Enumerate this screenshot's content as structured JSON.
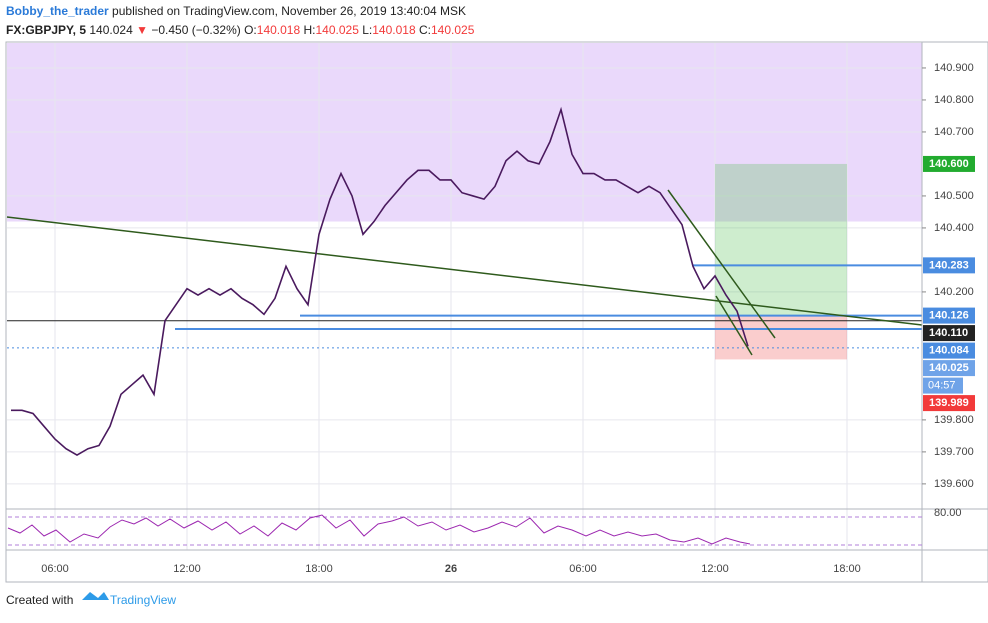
{
  "header": {
    "author": "Bobby_the_trader",
    "published": "published on TradingView.com, November 26, 2019 13:40:04 MSK",
    "symbol": "FX:GBPJPY, 5",
    "last": "140.024",
    "arrow": "▼",
    "change": "−0.450 (−0.32%)",
    "o_label": "O:",
    "open": "140.018",
    "h_label": "H:",
    "high": "140.025",
    "l_label": "L:",
    "low": "140.018",
    "c_label": "C:",
    "close": "140.025"
  },
  "chart_data": {
    "type": "line",
    "color": "#4a1a5e",
    "categories": [
      null,
      null,
      null,
      null,
      "06:00",
      null,
      null,
      null,
      null,
      null,
      null,
      null,
      null,
      null,
      null,
      null,
      "12:00",
      null,
      null,
      null,
      null,
      null,
      null,
      null,
      null,
      null,
      null,
      null,
      "18:00",
      null,
      null,
      null,
      null,
      null,
      null,
      null,
      null,
      null,
      null,
      null,
      "26",
      null,
      null,
      null,
      null,
      null,
      null,
      null,
      null,
      null,
      null,
      null,
      "06:00",
      null,
      null,
      null,
      null,
      null,
      null,
      null,
      null,
      null,
      null,
      null,
      "12:00",
      null,
      null,
      null,
      null,
      null,
      null,
      null,
      null,
      null,
      null,
      null,
      "18:00",
      null,
      null,
      null,
      null,
      null,
      null,
      null
    ],
    "values": [
      139.83,
      139.83,
      139.82,
      139.78,
      139.74,
      139.71,
      139.69,
      139.71,
      139.72,
      139.78,
      139.88,
      139.91,
      139.94,
      139.88,
      140.11,
      140.16,
      140.21,
      140.19,
      140.21,
      140.19,
      140.21,
      140.18,
      140.16,
      140.13,
      140.18,
      140.28,
      140.21,
      140.16,
      140.38,
      140.49,
      140.57,
      140.5,
      140.38,
      140.42,
      140.47,
      140.51,
      140.55,
      140.58,
      140.58,
      140.55,
      140.55,
      140.51,
      140.5,
      140.49,
      140.53,
      140.61,
      140.64,
      140.61,
      140.6,
      140.67,
      140.77,
      140.63,
      140.57,
      140.57,
      140.55,
      140.55,
      140.53,
      140.51,
      140.53,
      140.51,
      140.46,
      140.41,
      140.28,
      140.21,
      140.25,
      140.19,
      140.14,
      140.03,
      null,
      null,
      null,
      null,
      null,
      null,
      null,
      null,
      null,
      null,
      null,
      null,
      null,
      null,
      null,
      null
    ],
    "ylim": [
      139.534,
      140.978
    ],
    "yticks": [
      {
        "value": 139.6,
        "label": "139.600"
      },
      {
        "value": 139.7,
        "label": "139.700"
      },
      {
        "value": 139.8,
        "label": "139.800"
      },
      {
        "value": 140.2,
        "label": "140.200"
      },
      {
        "value": 140.4,
        "label": "140.400"
      },
      {
        "value": 140.5,
        "label": "140.500"
      },
      {
        "value": 140.7,
        "label": "140.700"
      },
      {
        "value": 140.8,
        "label": "140.800"
      },
      {
        "value": 140.9,
        "label": "140.900"
      }
    ],
    "grid": true,
    "zone": {
      "from": 140.42,
      "color": "#ead9fb"
    },
    "position": {
      "target": 140.6,
      "entry": 140.126,
      "stop": 139.989
    },
    "price_labels": [
      {
        "value": 140.6,
        "label": "140.600",
        "color": "#22ab2f"
      },
      {
        "value": 140.283,
        "label": "140.283",
        "color": "#4a8ce0"
      },
      {
        "value": 140.126,
        "label": "140.126",
        "color": "#4a8ce0"
      },
      {
        "value": 140.11,
        "label": "140.110",
        "color": "#222222"
      },
      {
        "value": 140.084,
        "label": "140.084",
        "color": "#4a8ce0"
      },
      {
        "value": 140.025,
        "label": "140.025",
        "color": "#6fa3e8"
      },
      {
        "value": 139.989,
        "label": "139.989",
        "color": "#f23a3a"
      }
    ],
    "countdown": "04:57",
    "rsi_level": "80.00"
  },
  "footer": {
    "created": "Created with",
    "brand": "TradingView"
  }
}
